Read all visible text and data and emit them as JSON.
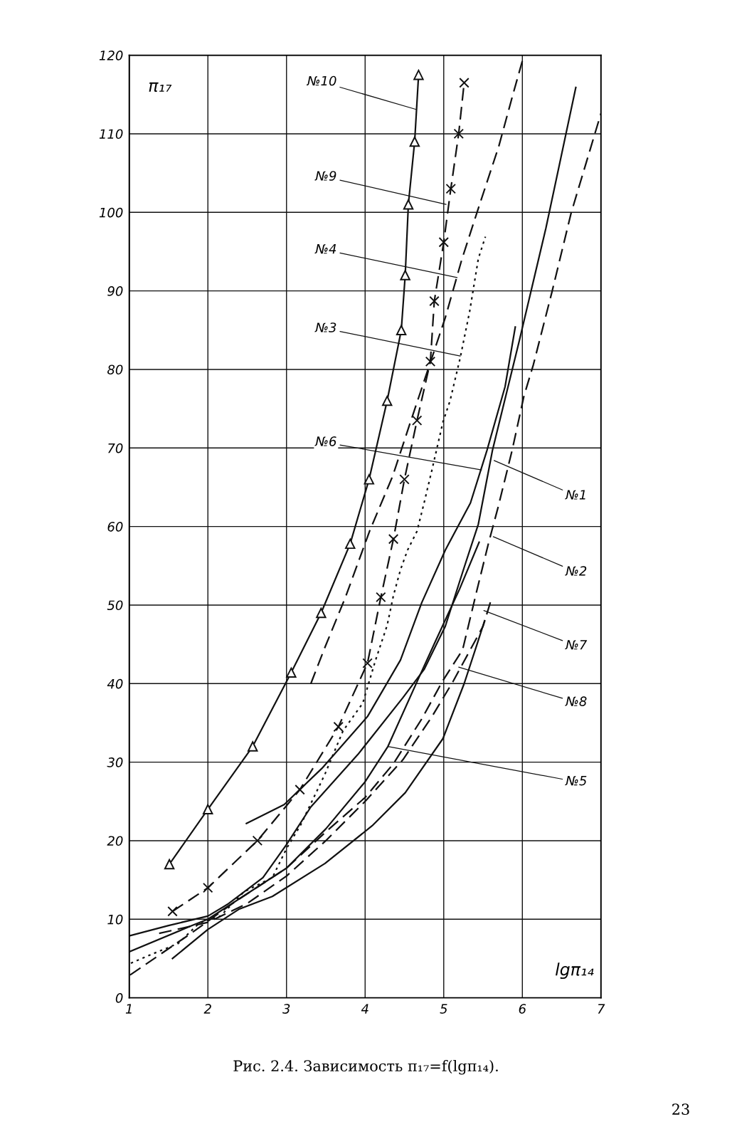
{
  "chart_data": {
    "type": "line",
    "xlabel": "lgπ₁₄",
    "ylabel": "π₁₇",
    "xlim": [
      1,
      7
    ],
    "xticks": [
      1,
      2,
      3,
      4,
      5,
      6,
      7
    ],
    "ylim": [
      0,
      120
    ],
    "yticks": [
      0,
      10,
      20,
      30,
      40,
      50,
      60,
      70,
      80,
      90,
      100,
      110,
      120
    ],
    "grid": true,
    "series": [
      {
        "color": "#111111",
        "line_style": "solid",
        "marker": "triangle",
        "x": [
          1.51,
          2.0,
          2.57,
          3.06,
          3.44,
          3.81,
          4.05,
          4.28,
          4.46,
          4.51,
          4.55,
          4.63,
          4.68
        ],
        "values": [
          17,
          24,
          32,
          41.4,
          49,
          57.8,
          66,
          76,
          85,
          92,
          101,
          109,
          117.5
        ]
      },
      {
        "color": "#111111",
        "line_style": "dashed",
        "marker": "cross",
        "x": [
          1.55,
          2.0,
          2.63,
          3.17,
          3.66,
          4.03,
          4.2,
          4.36,
          4.5,
          4.66,
          4.83,
          4.88,
          5.0,
          5.09,
          5.19,
          5.26
        ],
        "values": [
          11,
          14,
          20,
          26.5,
          34.5,
          42.6,
          51,
          58.4,
          66,
          73.5,
          81,
          88.7,
          96.2,
          103,
          110,
          116.5
        ]
      },
      {
        "color": "#111111",
        "line_style": "dashed",
        "marker": "none",
        "x": [
          3.31,
          3.48,
          3.75,
          4.06,
          4.35,
          4.56,
          4.8,
          5.02,
          5.23,
          5.43,
          5.7,
          5.88,
          6.02
        ],
        "values": [
          40,
          44.4,
          51,
          59.5,
          66.4,
          72.8,
          80,
          86.6,
          94,
          100.2,
          108.4,
          115,
          120
        ]
      },
      {
        "color": "#111111",
        "line_style": "dotted",
        "marker": "none",
        "x": [
          1.02,
          1.3,
          1.62,
          1.89,
          2.16,
          2.46,
          2.82,
          3.0,
          3.18,
          3.49,
          3.72,
          3.97,
          4.13,
          4.28,
          4.36,
          4.45,
          4.54,
          4.66,
          4.75,
          4.85,
          4.99,
          5.08,
          5.21,
          5.33,
          5.44,
          5.53
        ],
        "values": [
          4.4,
          5.6,
          6.9,
          9.5,
          10.4,
          13.5,
          15.3,
          19,
          22,
          28.5,
          34,
          37.5,
          42.9,
          47.4,
          51.2,
          54.5,
          57,
          59.4,
          63,
          67.2,
          73.3,
          76,
          81.5,
          87.4,
          94.1,
          96.9
        ]
      },
      {
        "color": "#111111",
        "line_style": "solid",
        "marker": "none",
        "x": [
          2.49,
          2.97,
          3.45,
          4.03,
          4.45,
          4.72,
          5.02,
          5.34,
          5.55,
          5.78,
          5.91
        ],
        "values": [
          22.2,
          24.6,
          29.2,
          35.8,
          43,
          50.3,
          57,
          63,
          69.7,
          77.8,
          85.4
        ]
      },
      {
        "color": "#111111",
        "line_style": "solid",
        "marker": "none",
        "x": [
          1.01,
          1.5,
          2.0,
          2.25,
          2.7,
          3.0,
          3.31,
          3.91,
          4.48,
          4.75,
          5.02,
          5.26,
          5.44,
          5.62,
          5.96,
          6.3,
          6.68
        ],
        "values": [
          7.9,
          9.2,
          10.4,
          11.9,
          15.3,
          19.5,
          24.3,
          31,
          38.2,
          41.8,
          47.3,
          54.8,
          60.3,
          69.7,
          83.6,
          98,
          115.9
        ]
      },
      {
        "color": "#111111",
        "line_style": "dashed",
        "marker": "none",
        "x": [
          1.01,
          1.8,
          2.34,
          3.0,
          3.52,
          4.0,
          4.36,
          4.72,
          4.99,
          5.24,
          5.42,
          5.57,
          5.69,
          5.87,
          6.02,
          6.14,
          6.38,
          6.62,
          7.0
        ],
        "values": [
          2.9,
          8.3,
          12.2,
          16.5,
          21.3,
          25.5,
          29.8,
          35.5,
          40.4,
          44.3,
          51.8,
          57.9,
          62.4,
          69.7,
          76.6,
          80.6,
          90,
          99.9,
          112.6
        ]
      },
      {
        "color": "#111111",
        "line_style": "dashed",
        "marker": "none",
        "x": [
          1.38,
          2.0,
          2.5,
          3.0,
          3.5,
          4.0,
          4.48,
          4.85,
          5.12,
          5.5,
          5.61
        ],
        "values": [
          8.2,
          9.6,
          12,
          15.5,
          20,
          25,
          30.3,
          35.8,
          40.3,
          47.3,
          50.9
        ]
      },
      {
        "color": "#111111",
        "line_style": "solid",
        "marker": "none",
        "x": [
          1.55,
          2.0,
          2.4,
          2.82,
          3.49,
          4.09,
          4.51,
          4.99,
          5.26,
          5.43,
          5.52
        ],
        "values": [
          5,
          8.7,
          11.3,
          12.9,
          17.1,
          21.9,
          26.1,
          33,
          40,
          45.2,
          48
        ]
      },
      {
        "color": "#111111",
        "line_style": "solid",
        "marker": "none",
        "x": [
          1.01,
          1.8,
          2.0,
          3.0,
          3.5,
          4.0,
          4.29,
          4.69,
          4.9,
          5.2,
          5.45
        ],
        "values": [
          5.9,
          9.2,
          10,
          16.5,
          21.5,
          27.5,
          32,
          40.9,
          45.5,
          52,
          58
        ]
      }
    ],
    "annotations": [
      {
        "text": "№10",
        "x": 4.65,
        "y": 113.1
      },
      {
        "text": "№9",
        "x": 5.03,
        "y": 101
      },
      {
        "text": "№4",
        "x": 5.17,
        "y": 91.7
      },
      {
        "text": "№3",
        "x": 5.21,
        "y": 81.7
      },
      {
        "text": "№6",
        "x": 5.48,
        "y": 67.2
      },
      {
        "text": "№1",
        "x": 5.64,
        "y": 68.4
      },
      {
        "text": "№2",
        "x": 5.63,
        "y": 58.7
      },
      {
        "text": "№7",
        "x": 5.51,
        "y": 49.3
      },
      {
        "text": "№8",
        "x": 5.19,
        "y": 42.1
      },
      {
        "text": "№5",
        "x": 4.29,
        "y": 32
      },
      "Рис. 2.4. Зависимость π₁₇=f(lgπ₁₄).",
      "23"
    ]
  }
}
